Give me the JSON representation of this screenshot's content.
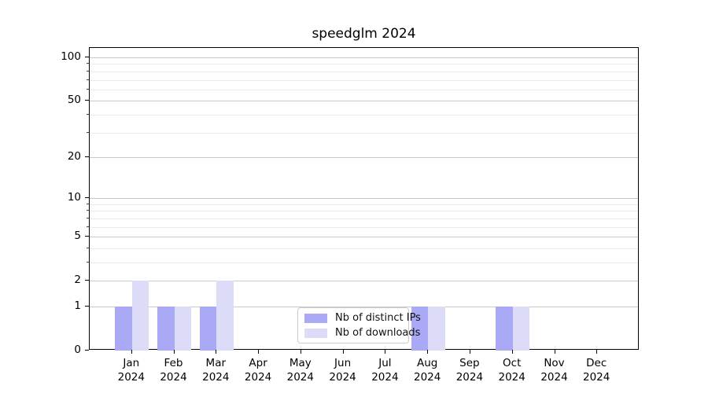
{
  "background": "#ffffff",
  "chart_data": {
    "type": "bar",
    "title": "speedglm 2024",
    "categories": [
      "Jan",
      "Feb",
      "Mar",
      "Apr",
      "May",
      "Jun",
      "Jul",
      "Aug",
      "Sep",
      "Oct",
      "Nov",
      "Dec"
    ],
    "x_sublabel_year": "2024",
    "series": [
      {
        "name": "Nb of distinct IPs",
        "color": "#a9a9f5",
        "values": [
          1,
          1,
          1,
          0,
          0,
          0,
          0,
          1,
          0,
          1,
          0,
          0
        ]
      },
      {
        "name": "Nb of downloads",
        "color": "#dcdcf8",
        "values": [
          2,
          1,
          2,
          0,
          0,
          0,
          0,
          1,
          0,
          1,
          0,
          0
        ]
      }
    ],
    "ylabel": "",
    "xlabel": "",
    "y_scale": "log1p",
    "y_ticks": [
      0,
      1,
      2,
      5,
      10,
      20,
      50,
      100
    ],
    "y_minor_gridlines": [
      3,
      4,
      6,
      7,
      8,
      9,
      30,
      40,
      60,
      70,
      80,
      90
    ],
    "ylim": [
      0,
      110
    ],
    "grid": true,
    "legend_position": "bottom-center"
  }
}
